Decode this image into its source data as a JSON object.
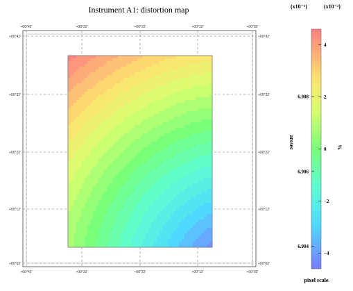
{
  "chart_data": {
    "type": "heatmap",
    "title": "Instrument A1: distortion map",
    "grid": true,
    "axes": {
      "x_tick_labels": [
        "+00°42'",
        "+00°32'",
        "+00°22'",
        "+00°12'",
        "+00°02'"
      ],
      "y_tick_labels": [
        "+00°42'",
        "+00°32'",
        "+00°22'",
        "+00°12'",
        "+00°02'"
      ]
    },
    "colorbar": {
      "label": "pixel scale",
      "left_axis_label": "arcsec",
      "right_axis_label": "%",
      "left_multiplier": "(x10⁻¹)",
      "right_multiplier": "(x10⁻²)",
      "left_ticks": [
        "6.908",
        "6.906",
        "6.904"
      ],
      "left_tick_values": [
        6.908,
        6.906,
        6.904
      ],
      "right_ticks": [
        "4",
        "2",
        "0",
        "−2",
        "−4"
      ],
      "right_tick_values": [
        4,
        2,
        0,
        -2,
        -4
      ],
      "right_range": [
        -4.6,
        4.6
      ]
    },
    "field": {
      "description_of_gradient": "highest value at top-left corner, lowest at bottom-right corner",
      "value_top_left": 4.6,
      "value_bottom_right": -4.6
    }
  }
}
